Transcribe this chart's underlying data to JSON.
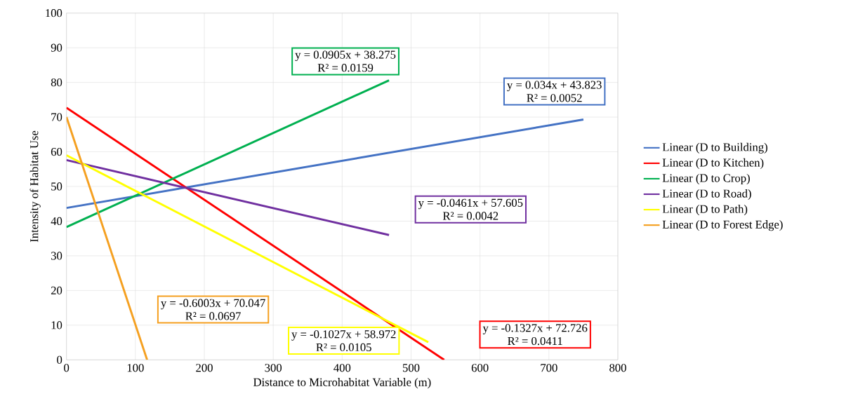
{
  "chart_data": {
    "type": "line",
    "xlabel": "Distance to Microhabitat Variable (m)",
    "ylabel": "Intensity of Habitat Use",
    "xlim": [
      0,
      800
    ],
    "xticks": [
      0,
      100,
      200,
      300,
      400,
      500,
      600,
      700,
      800
    ],
    "ylim": [
      0,
      100
    ],
    "yticks": [
      0,
      10,
      20,
      30,
      40,
      50,
      60,
      70,
      80,
      90,
      100
    ],
    "grid": true,
    "legend": "right",
    "marker": "none",
    "line_style": "solid",
    "series": [
      {
        "name": "Linear (D to Building)",
        "color": "#4472c4",
        "x": [
          0,
          750
        ],
        "values": [
          43.8,
          69.3
        ]
      },
      {
        "name": "Linear (D to Kitchen)",
        "color": "#ff0000",
        "x": [
          0,
          548
        ],
        "values": [
          72.7,
          0
        ]
      },
      {
        "name": "Linear (D to Crop)",
        "color": "#00b050",
        "x": [
          0,
          468
        ],
        "values": [
          38.3,
          80.6
        ]
      },
      {
        "name": "Linear (D to Road)",
        "color": "#7030a0",
        "x": [
          0,
          468
        ],
        "values": [
          57.6,
          36.0
        ]
      },
      {
        "name": "Linear (D to Path)",
        "color": "#ffff00",
        "x": [
          0,
          525
        ],
        "values": [
          59.0,
          5.1
        ]
      },
      {
        "name": "Linear (D to Forest Edge)",
        "color": "#f5a020",
        "x": [
          0,
          117
        ],
        "values": [
          70.0,
          0
        ]
      }
    ],
    "annotations": [
      "y = 0.034x + 43.823",
      "R² = 0.0052",
      "y = -0.1327x + 72.726",
      "R² = 0.0411",
      "y = 0.0905x + 38.275",
      "R² = 0.0159",
      "y = -0.0461x + 57.605",
      "R² = 0.0042",
      "y = -0.1027x + 58.972",
      "R² = 0.0105",
      "y = -0.6003x + 70.047",
      "R² = 0.0697"
    ]
  }
}
